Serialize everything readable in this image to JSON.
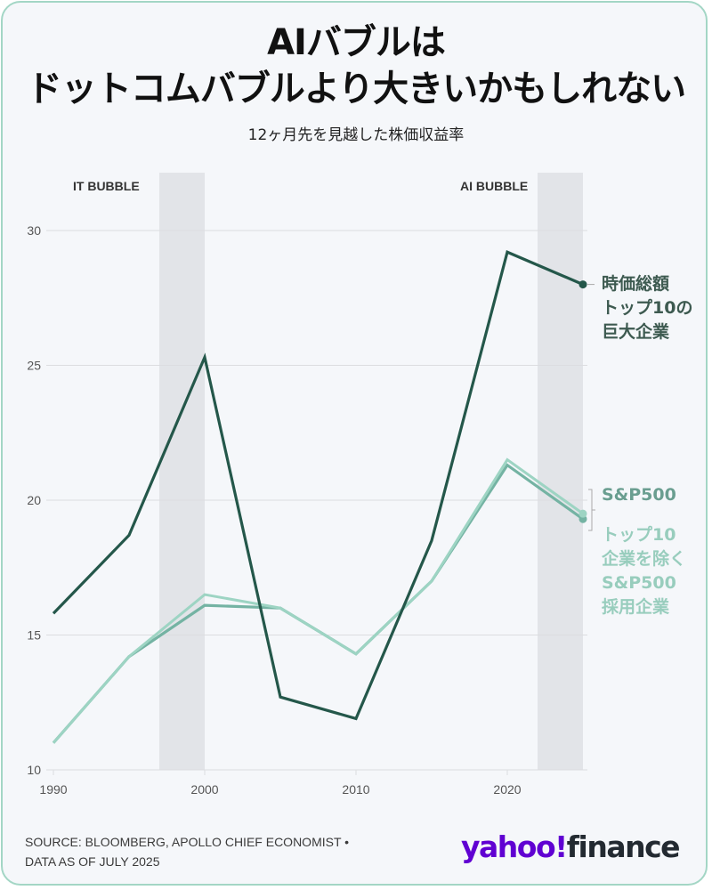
{
  "header": {
    "title_line1": "AIバブルは",
    "title_line2": "ドットコムバブルより大きいかもしれない",
    "subtitle": "12ヶ月先を見越した株価収益率"
  },
  "annotations": {
    "it_bubble": "IT BUBBLE",
    "ai_bubble": "AI BUBBLE"
  },
  "legend": {
    "top10": [
      "時価総額",
      "トップ10の",
      "巨大企業"
    ],
    "sp500": "S&P500",
    "excl": [
      "トップ10",
      "企業を除く",
      "S&P500",
      "採用企業"
    ]
  },
  "footer": {
    "source_line1": "SOURCE: BLOOMBERG, APOLLO CHIEF ECONOMIST •",
    "source_line2": "DATA AS OF JULY 2025",
    "logo_yahoo": "yahoo!",
    "logo_finance": "finance"
  },
  "colors": {
    "top10": "#24574a",
    "sp500": "#74b3a3",
    "excl": "#9dd4c3",
    "band": "#e2e4e8",
    "grid": "#dcdde0",
    "border": "#a3d6c5"
  },
  "chart_data": {
    "type": "line",
    "title": "AIバブルはドットコムバブルより大きいかもしれない",
    "subtitle": "12ヶ月先を見越した株価収益率",
    "xlabel": "",
    "ylabel": "",
    "x": [
      1990,
      1995,
      2000,
      2005,
      2010,
      2015,
      2020,
      2025
    ],
    "xticks": [
      1990,
      2000,
      2010,
      2020
    ],
    "yticks": [
      10,
      15,
      20,
      25,
      30
    ],
    "ylim": [
      10,
      30
    ],
    "grid": true,
    "series": [
      {
        "name": "時価総額トップ10の巨大企業",
        "values": [
          15.8,
          18.7,
          25.3,
          12.7,
          11.9,
          18.5,
          29.2,
          28.0
        ]
      },
      {
        "name": "S&P500",
        "values": [
          11.0,
          14.2,
          16.1,
          16.0,
          14.3,
          17.0,
          21.3,
          19.3
        ]
      },
      {
        "name": "トップ10企業を除くS&P500採用企業",
        "values": [
          11.0,
          14.2,
          16.5,
          16.0,
          14.3,
          17.0,
          21.5,
          19.5
        ]
      }
    ],
    "shaded_regions": [
      {
        "label": "IT BUBBLE",
        "x_start": 1997,
        "x_end": 2000
      },
      {
        "label": "AI BUBBLE",
        "x_start": 2022,
        "x_end": 2025
      }
    ],
    "legend_position": "right (direct labels)",
    "source": "SOURCE: BLOOMBERG, APOLLO CHIEF ECONOMIST • DATA AS OF JULY 2025"
  }
}
